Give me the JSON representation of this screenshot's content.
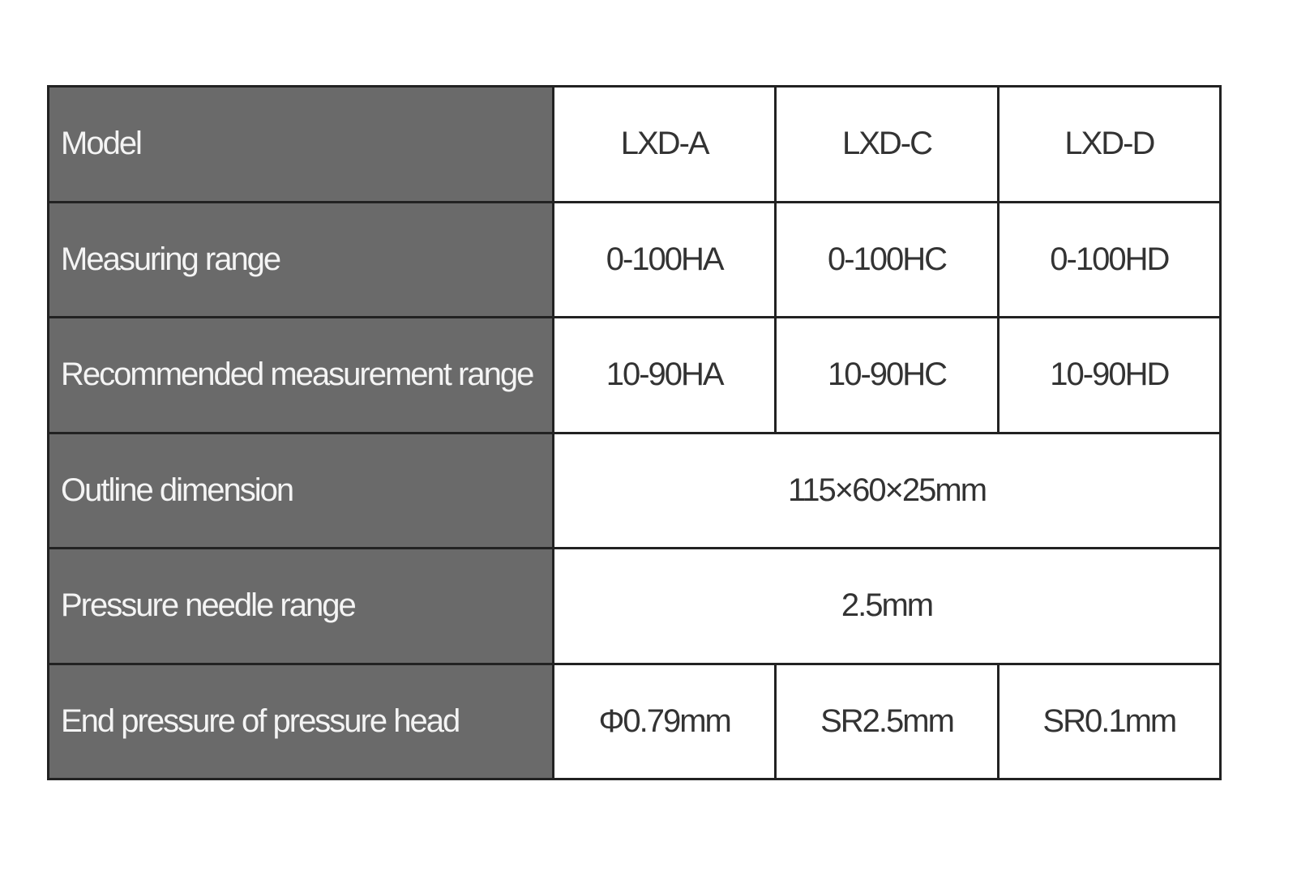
{
  "table": {
    "rows": [
      {
        "label": "Model",
        "cells": [
          "LXD-A",
          "LXD-C",
          "LXD-D"
        ]
      },
      {
        "label": "Measuring range",
        "cells": [
          "0-100HA",
          "0-100HC",
          "0-100HD"
        ]
      },
      {
        "label": "Recommended measurement range",
        "cells": [
          "10-90HA",
          "10-90HC",
          "10-90HD"
        ]
      },
      {
        "label": "Outline dimension",
        "cells": [
          "115×60×25mm"
        ]
      },
      {
        "label": "Pressure needle range",
        "cells": [
          "2.5mm"
        ]
      },
      {
        "label": "End pressure of pressure head",
        "cells": [
          "Φ0.79mm",
          "SR2.5mm",
          "SR0.1mm"
        ]
      }
    ]
  }
}
